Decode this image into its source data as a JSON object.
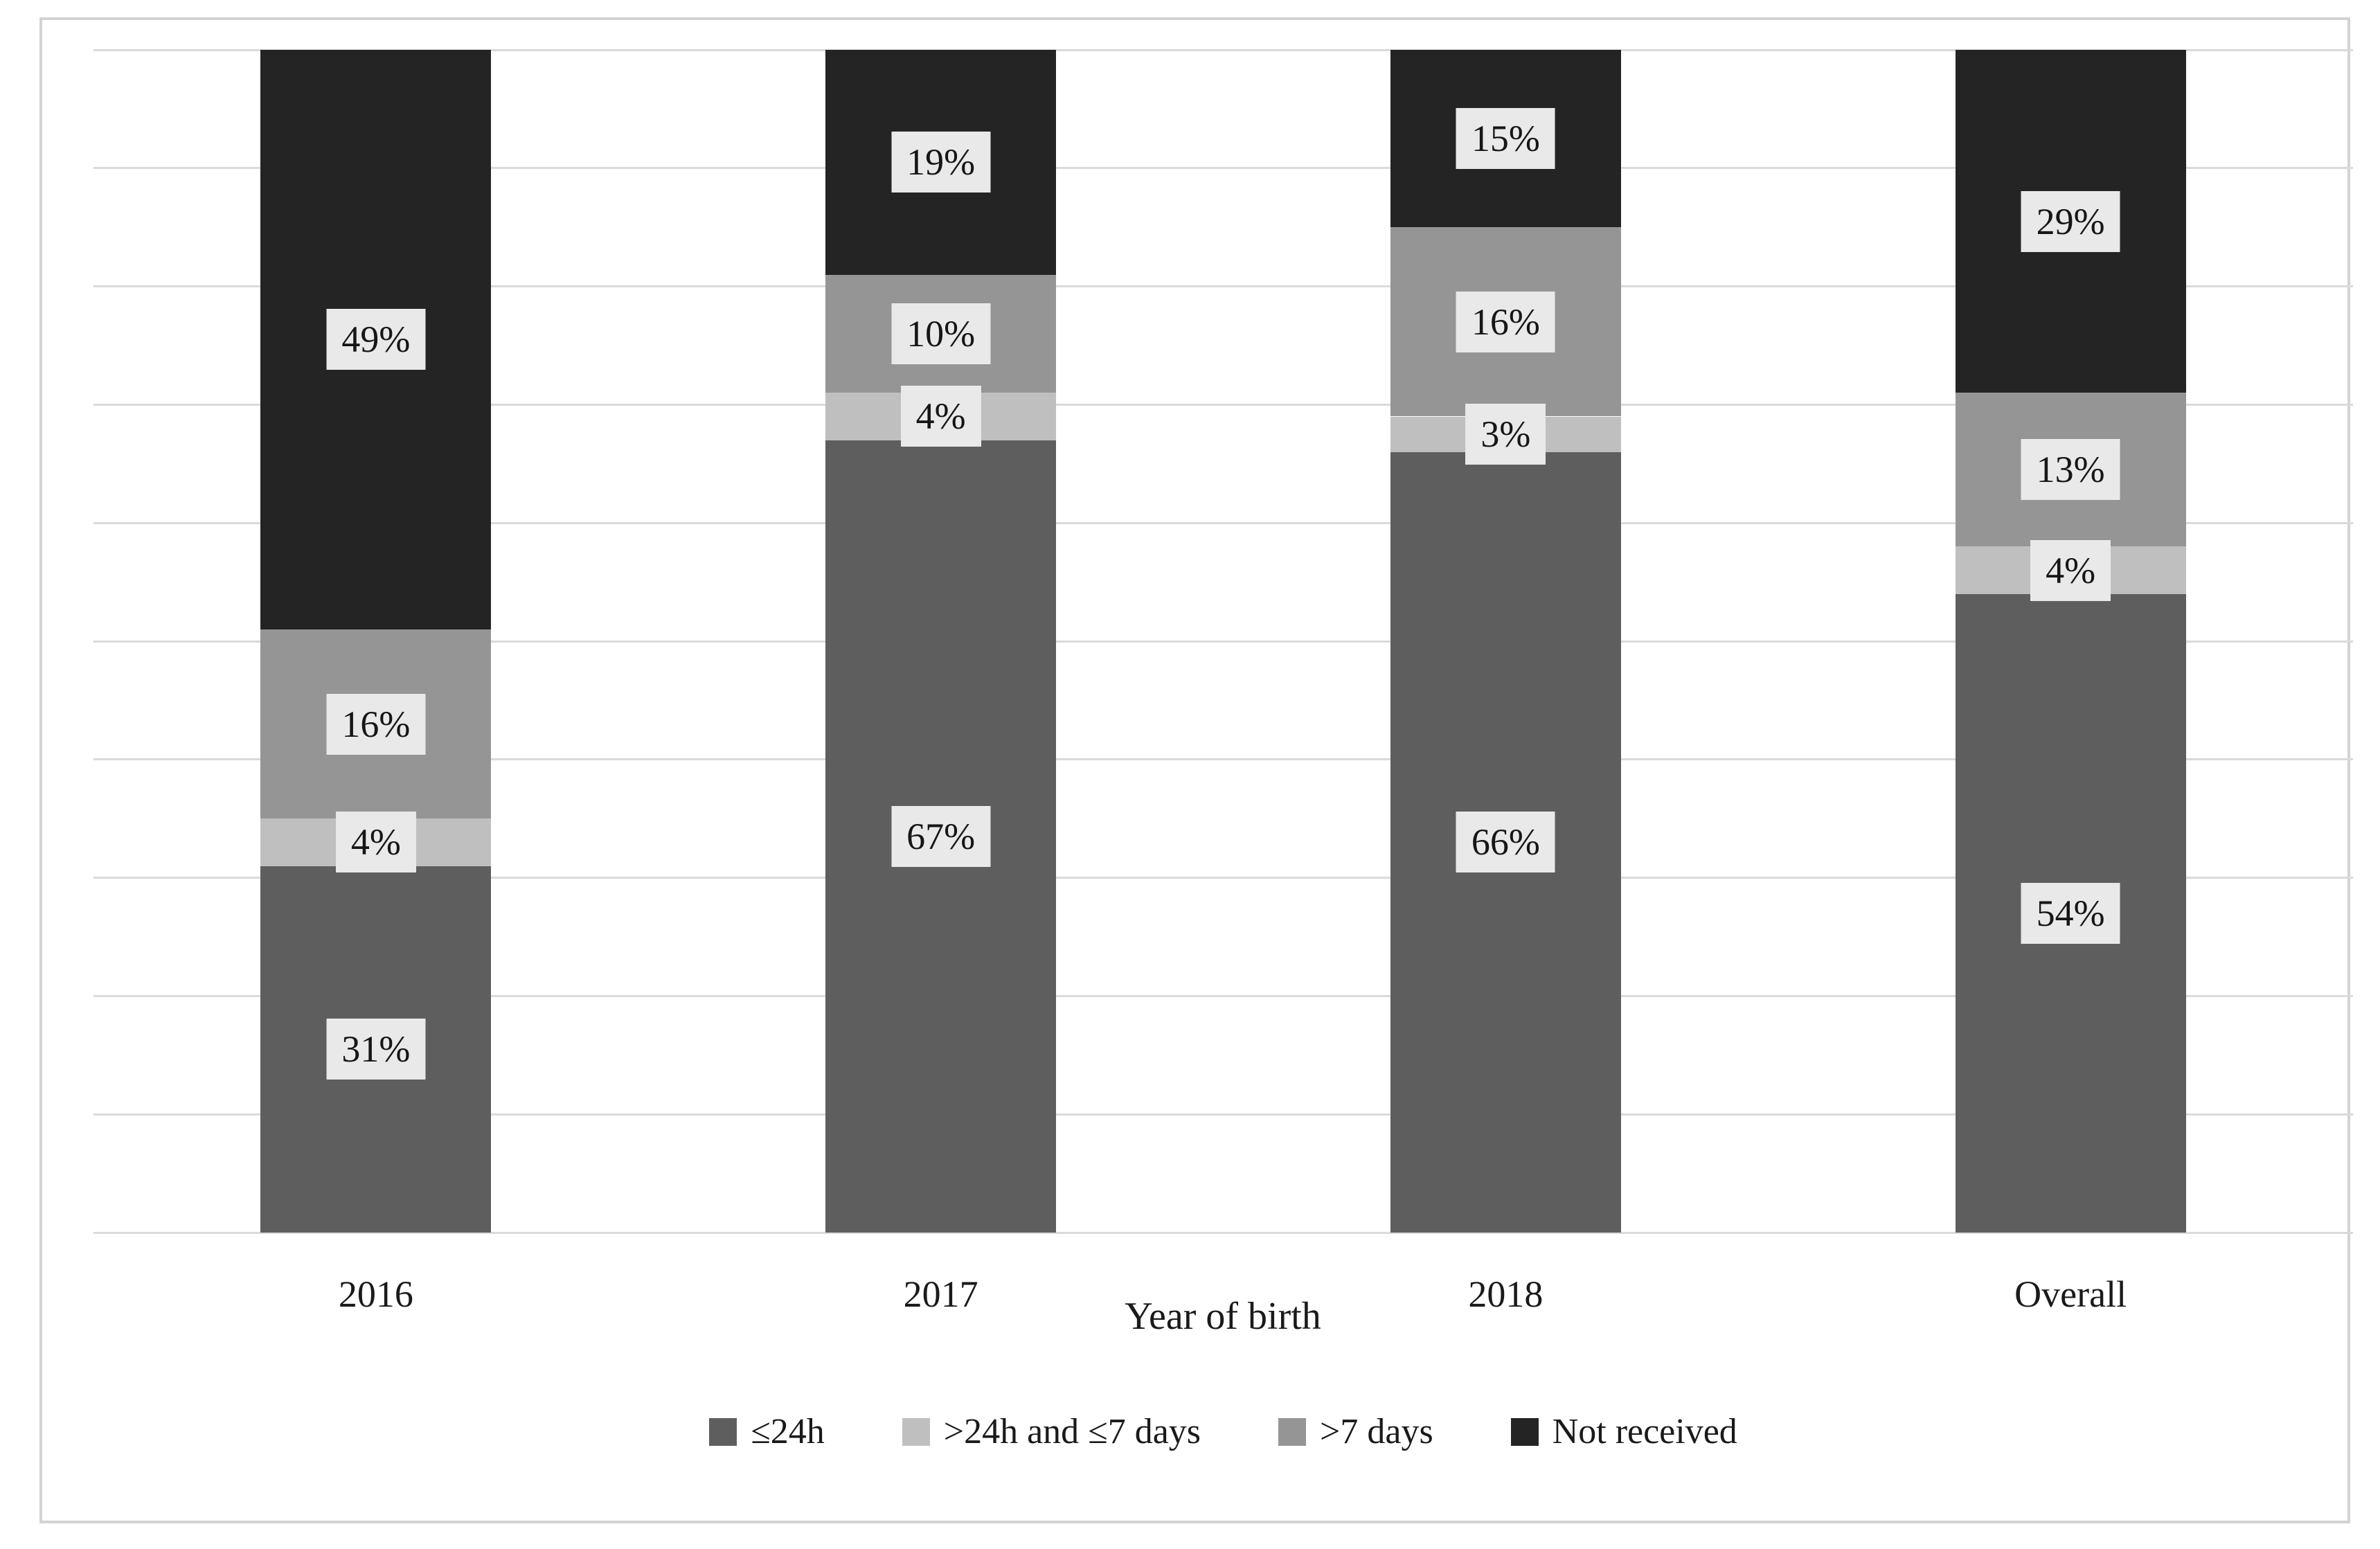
{
  "figure": {
    "background_color": "#ffffff",
    "frame_border_color": "#d3d3d3"
  },
  "chart_data": {
    "type": "bar",
    "stacked": true,
    "orientation": "vertical",
    "title": "",
    "xlabel": "Year of birth",
    "ylabel": "",
    "ylim": [
      0,
      100
    ],
    "y_axis_labels_visible": false,
    "gridlines": {
      "show": true,
      "interval_percent": 10,
      "color": "#dadada"
    },
    "legend_position": "bottom",
    "categories": [
      "2016",
      "2017",
      "2018",
      "Overall"
    ],
    "series": [
      {
        "name": "≤24h",
        "color": "#5e5e5e",
        "values": [
          31,
          67,
          66,
          54
        ]
      },
      {
        "name": ">24h and ≤7 days",
        "color": "#bfbfbf",
        "values": [
          4,
          4,
          3,
          4
        ]
      },
      {
        "name": ">7 days",
        "color": "#959595",
        "values": [
          16,
          10,
          16,
          13
        ]
      },
      {
        "name": "Not received",
        "color": "#242424",
        "values": [
          49,
          19,
          15,
          29
        ]
      }
    ],
    "data_labels": {
      "suffix": "%",
      "background": "#e9e9e9",
      "text_color": "#161616",
      "placement": "segment-center"
    }
  }
}
